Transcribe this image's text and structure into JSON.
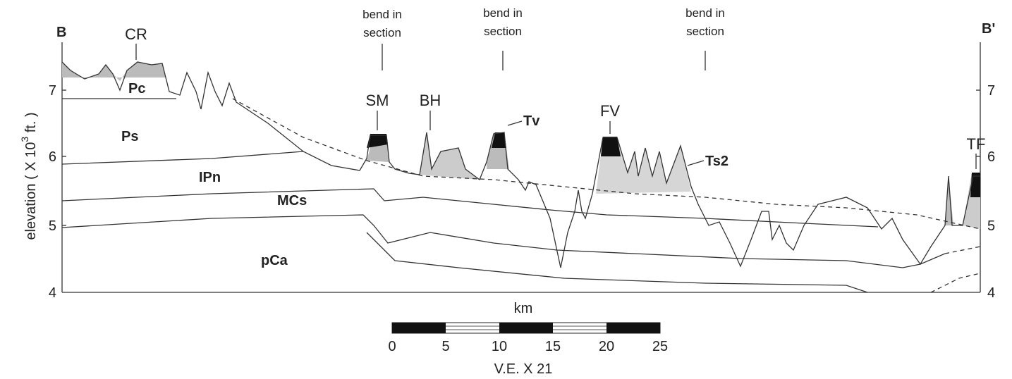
{
  "section": {
    "start_label": "B",
    "end_label": "B'"
  },
  "y_axis": {
    "title": "elevation ( X 10",
    "exponent": "3",
    "unit": " ft. )",
    "left_ticks": [
      "7",
      "6",
      "5",
      "4"
    ],
    "right_ticks": [
      "7",
      "6",
      "5",
      "4"
    ]
  },
  "annotations": [
    {
      "lines": [
        "bend in",
        "section"
      ]
    },
    {
      "lines": [
        "bend in",
        "section"
      ]
    },
    {
      "lines": [
        "bend in",
        "section"
      ]
    }
  ],
  "features": [
    {
      "label": "CR"
    },
    {
      "label": "SM"
    },
    {
      "label": "BH"
    },
    {
      "label": "Tv"
    },
    {
      "label": "FV"
    },
    {
      "label": "Ts2"
    },
    {
      "label": "TF"
    }
  ],
  "units": [
    {
      "label": "Pc"
    },
    {
      "label": "Ps"
    },
    {
      "label": "IPn"
    },
    {
      "label": "MCs"
    },
    {
      "label": "pCa"
    }
  ],
  "scale_bar": {
    "title": "km",
    "ticks": [
      "0",
      "5",
      "10",
      "15",
      "20",
      "25"
    ],
    "note": "V.E. X 21"
  }
}
